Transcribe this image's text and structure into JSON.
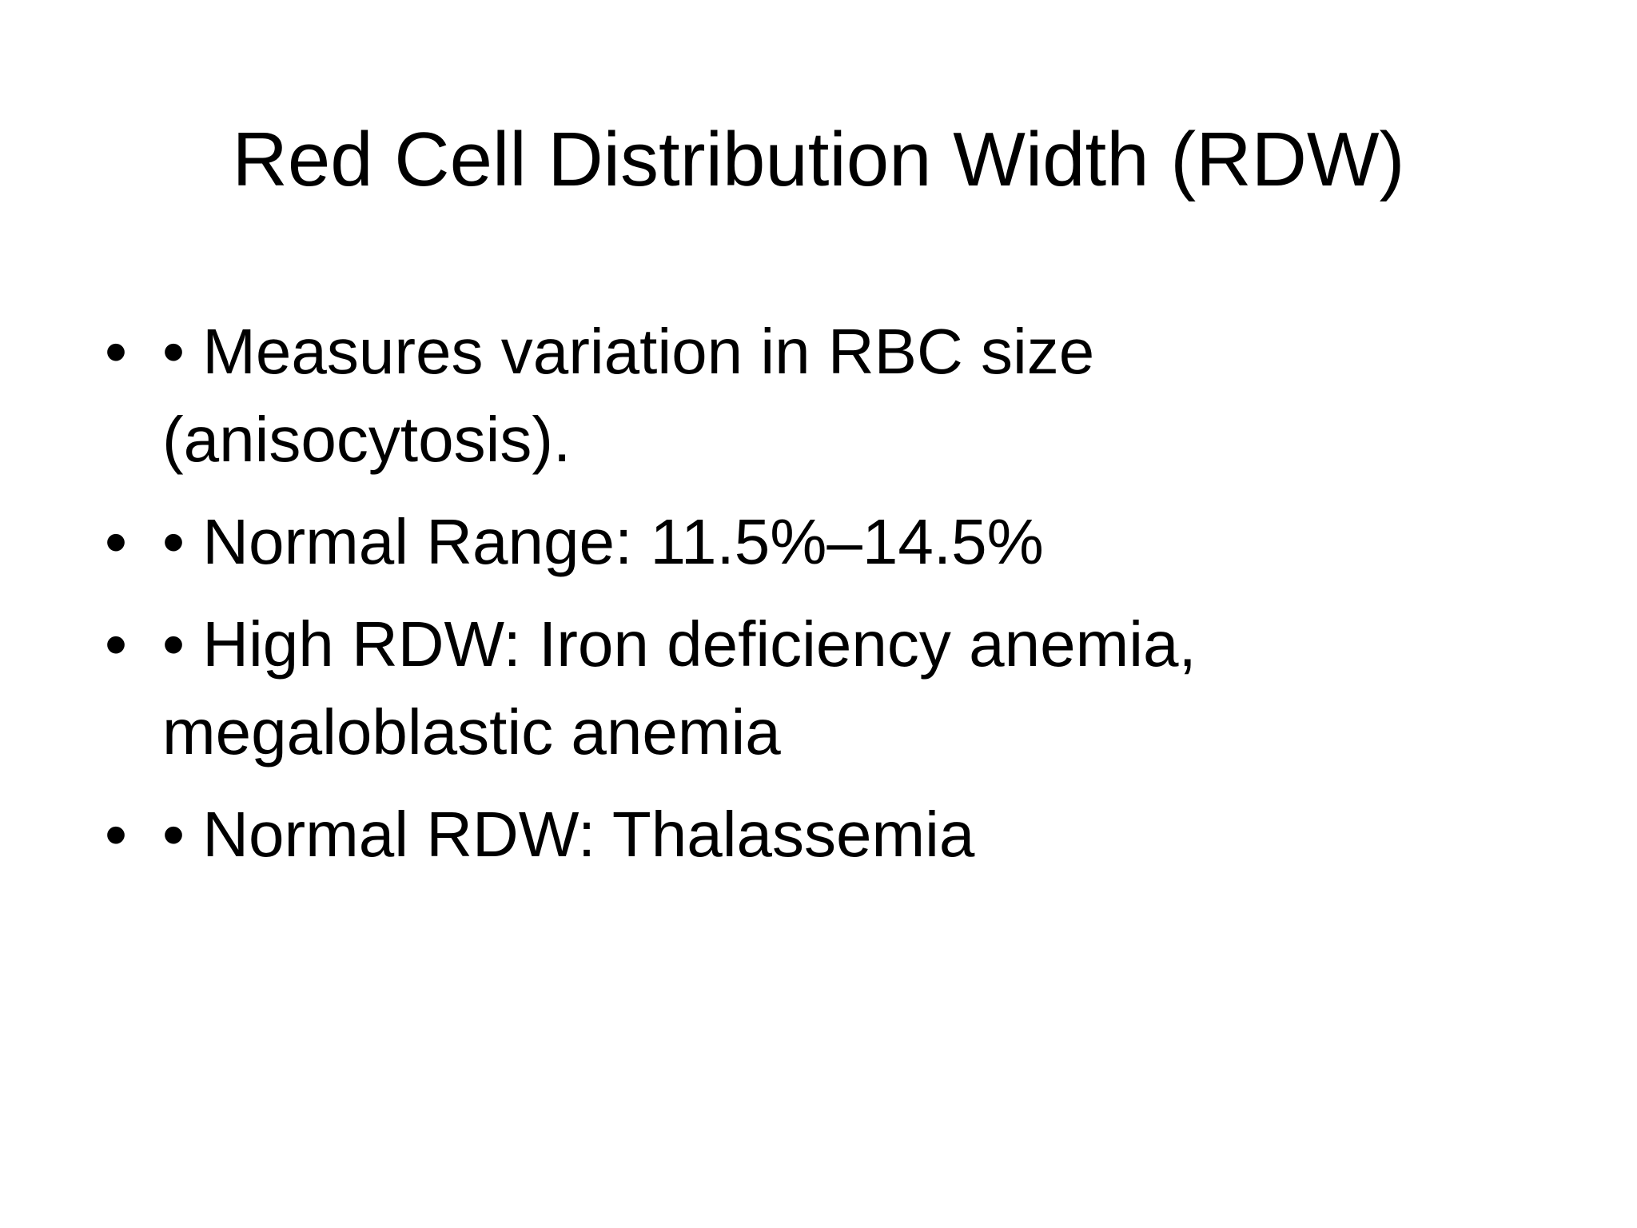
{
  "title": "Red Cell Distribution Width (RDW)",
  "bullets": [
    "• Measures variation in RBC size (anisocytosis).",
    "• Normal Range: 11.5%–14.5%",
    "• High RDW: Iron deficiency anemia, megaloblastic anemia",
    "• Normal RDW: Thalassemia"
  ]
}
